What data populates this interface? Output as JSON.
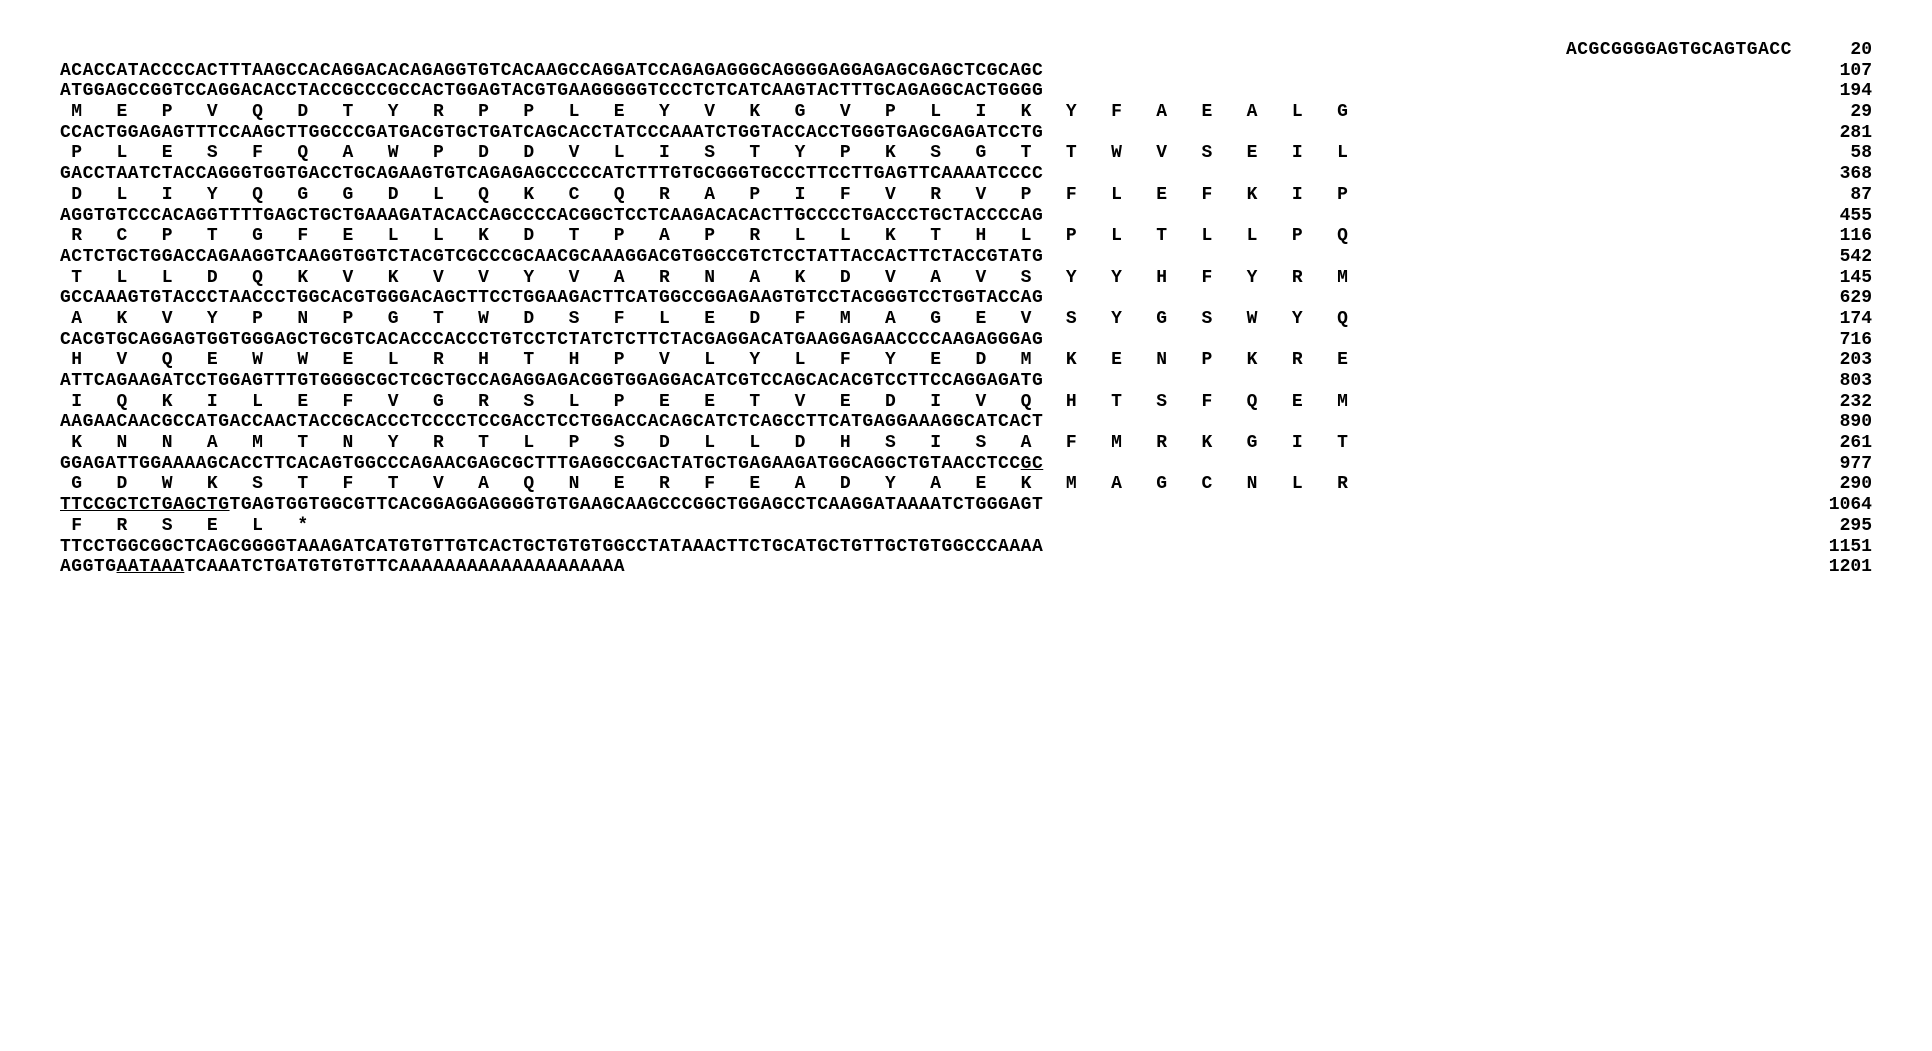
{
  "figure": {
    "font_family": "Courier New",
    "font_weight": "bold",
    "font_size_pt": 18,
    "background_color": "#ffffff",
    "text_color": "#000000",
    "type": "nucleotide-protein-alignment",
    "aa_spacing": "   ",
    "lines": [
      {
        "kind": "nt_first",
        "seq": "ACGCGGGGAGTGCAGTGACC",
        "pos": "20"
      },
      {
        "kind": "nt",
        "seq": "ACACCATACCCCACTTTAAGCCACAGGACACAGAGGTGTCACAAGCCAGGATCCAGAGAGGGCAGGGGAGGAGAGCGAGCTCGCAGC",
        "pos": "107"
      },
      {
        "kind": "nt",
        "seq": "ATGGAGCCGGTCCAGGACACCTACCGCCCGCCACTGGAGTACGTGAAGGGGGTCCCTCTCATCAAGTACTTTGCAGAGGCACTGGGG",
        "pos": "194"
      },
      {
        "kind": "aa",
        "residues": [
          "M",
          "E",
          "P",
          "V",
          "Q",
          "D",
          "T",
          "Y",
          "R",
          "P",
          "P",
          "L",
          "E",
          "Y",
          "V",
          "K",
          "G",
          "V",
          "P",
          "L",
          "I",
          "K",
          "Y",
          "F",
          "A",
          "E",
          "A",
          "L",
          "G"
        ],
        "pos": "29"
      },
      {
        "kind": "nt",
        "seq": "CCACTGGAGAGTTTCCAAGCTTGGCCCGATGACGTGCTGATCAGCACCTATCCCAAATCTGGTACCACCTGGGTGAGCGAGATCCTG",
        "pos": "281"
      },
      {
        "kind": "aa",
        "residues": [
          "P",
          "L",
          "E",
          "S",
          "F",
          "Q",
          "A",
          "W",
          "P",
          "D",
          "D",
          "V",
          "L",
          "I",
          "S",
          "T",
          "Y",
          "P",
          "K",
          "S",
          "G",
          "T",
          "T",
          "W",
          "V",
          "S",
          "E",
          "I",
          "L"
        ],
        "pos": "58"
      },
      {
        "kind": "nt",
        "seq": "GACCTAATCTACCAGGGTGGTGACCTGCAGAAGTGTCAGAGAGCCCCCATCTTTGTGCGGGTGCCCTTCCTTGAGTTCAAAATCCCC",
        "pos": "368"
      },
      {
        "kind": "aa",
        "residues": [
          "D",
          "L",
          "I",
          "Y",
          "Q",
          "G",
          "G",
          "D",
          "L",
          "Q",
          "K",
          "C",
          "Q",
          "R",
          "A",
          "P",
          "I",
          "F",
          "V",
          "R",
          "V",
          "P",
          "F",
          "L",
          "E",
          "F",
          "K",
          "I",
          "P"
        ],
        "pos": "87"
      },
      {
        "kind": "nt",
        "seq": "AGGTGTCCCACAGGTTTTGAGCTGCTGAAAGATACACCAGCCCCACGGCTCCTCAAGACACACTTGCCCCTGACCCTGCTACCCCAG",
        "pos": "455"
      },
      {
        "kind": "aa",
        "residues": [
          "R",
          "C",
          "P",
          "T",
          "G",
          "F",
          "E",
          "L",
          "L",
          "K",
          "D",
          "T",
          "P",
          "A",
          "P",
          "R",
          "L",
          "L",
          "K",
          "T",
          "H",
          "L",
          "P",
          "L",
          "T",
          "L",
          "L",
          "P",
          "Q"
        ],
        "pos": "116"
      },
      {
        "kind": "nt",
        "seq": "ACTCTGCTGGACCAGAAGGTCAAGGTGGTCTACGTCGCCCGCAACGCAAAGGACGTGGCCGTCTCCTATTACCACTTCTACCGTATG",
        "pos": "542"
      },
      {
        "kind": "aa",
        "residues": [
          "T",
          "L",
          "L",
          "D",
          "Q",
          "K",
          "V",
          "K",
          "V",
          "V",
          "Y",
          "V",
          "A",
          "R",
          "N",
          "A",
          "K",
          "D",
          "V",
          "A",
          "V",
          "S",
          "Y",
          "Y",
          "H",
          "F",
          "Y",
          "R",
          "M"
        ],
        "pos": "145"
      },
      {
        "kind": "nt",
        "seq": "GCCAAAGTGTACCCTAACCCTGGCACGTGGGACAGCTTCCTGGAAGACTTCATGGCCGGAGAAGTGTCCTACGGGTCCTGGTACCAG",
        "pos": "629"
      },
      {
        "kind": "aa",
        "residues": [
          "A",
          "K",
          "V",
          "Y",
          "P",
          "N",
          "P",
          "G",
          "T",
          "W",
          "D",
          "S",
          "F",
          "L",
          "E",
          "D",
          "F",
          "M",
          "A",
          "G",
          "E",
          "V",
          "S",
          "Y",
          "G",
          "S",
          "W",
          "Y",
          "Q"
        ],
        "pos": "174"
      },
      {
        "kind": "nt",
        "seq": "CACGTGCAGGAGTGGTGGGAGCTGCGTCACACCCACCCTGTCCTCTATCTCTTCTACGAGGACATGAAGGAGAACCCCAAGAGGGAG",
        "pos": "716"
      },
      {
        "kind": "aa",
        "residues": [
          "H",
          "V",
          "Q",
          "E",
          "W",
          "W",
          "E",
          "L",
          "R",
          "H",
          "T",
          "H",
          "P",
          "V",
          "L",
          "Y",
          "L",
          "F",
          "Y",
          "E",
          "D",
          "M",
          "K",
          "E",
          "N",
          "P",
          "K",
          "R",
          "E"
        ],
        "pos": "203"
      },
      {
        "kind": "nt",
        "seq": "ATTCAGAAGATCCTGGAGTTTGTGGGGCGCTCGCTGCCAGAGGAGACGGTGGAGGACATCGTCCAGCACACGTCCTTCCAGGAGATG",
        "pos": "803"
      },
      {
        "kind": "aa",
        "residues": [
          "I",
          "Q",
          "K",
          "I",
          "L",
          "E",
          "F",
          "V",
          "G",
          "R",
          "S",
          "L",
          "P",
          "E",
          "E",
          "T",
          "V",
          "E",
          "D",
          "I",
          "V",
          "Q",
          "H",
          "T",
          "S",
          "F",
          "Q",
          "E",
          "M"
        ],
        "pos": "232"
      },
      {
        "kind": "nt",
        "seq": "AAGAACAACGCCATGACCAACTACCGCACCCTCCCCTCCGACCTCCTGGACCACAGCATCTCAGCCTTCATGAGGAAAGGCATCACT",
        "pos": "890"
      },
      {
        "kind": "aa",
        "residues": [
          "K",
          "N",
          "N",
          "A",
          "M",
          "T",
          "N",
          "Y",
          "R",
          "T",
          "L",
          "P",
          "S",
          "D",
          "L",
          "L",
          "D",
          "H",
          "S",
          "I",
          "S",
          "A",
          "F",
          "M",
          "R",
          "K",
          "G",
          "I",
          "T"
        ],
        "pos": "261"
      },
      {
        "kind": "nt_underlined",
        "seq_pre": "GGAGATTGGAAAAGCACCTTCACAGTGGCCCAGAACGAGCGCTTTGAGGCCGACTATGCTGAGAAGATGGCAGGCTGTAACCTCC",
        "seq_under": "GC",
        "pos": "977"
      },
      {
        "kind": "aa",
        "residues": [
          "G",
          "D",
          "W",
          "K",
          "S",
          "T",
          "F",
          "T",
          "V",
          "A",
          "Q",
          "N",
          "E",
          "R",
          "F",
          "E",
          "A",
          "D",
          "Y",
          "A",
          "E",
          "K",
          "M",
          "A",
          "G",
          "C",
          "N",
          "L",
          "R"
        ],
        "pos": "290"
      },
      {
        "kind": "nt_underlined2",
        "seq_under": "TTCCGCTCTGAGCTG",
        "seq_post": "TGAGTGGTGGCGTTCACGGAGGAGGGGTGTGAAGCAAGCCCGGCTGGAGCCTCAAGGATAAAATCTGGGAGT",
        "pos": "1064"
      },
      {
        "kind": "aa_short",
        "residues": [
          "F",
          "R",
          "S",
          "E",
          "L",
          "*"
        ],
        "pos": "295"
      },
      {
        "kind": "nt",
        "seq": "TTCCTGGCGGCTCAGCGGGGTAAAGATCATGTGTTGTCACTGCTGTGTGGCCTATAAACTTCTGCATGCTGTTGCTGTGGCCCAAAA",
        "pos": "1151"
      },
      {
        "kind": "nt_poly",
        "seq_pre": "AGGTG",
        "seq_under": "AATAAA",
        "seq_post": "TCAAATCTGATGTGTGTTCAAAAAAAAAAAAAAAAAAAA",
        "pos": "1201"
      }
    ]
  }
}
